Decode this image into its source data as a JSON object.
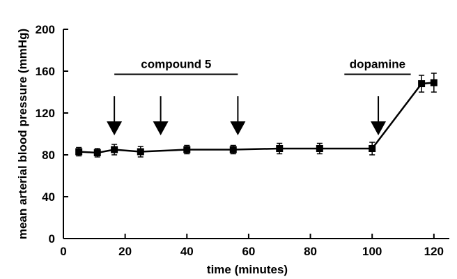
{
  "chart_data": {
    "type": "line",
    "xlabel": "time (minutes)",
    "ylabel": "mean arterial blood pressure (mmHg)",
    "xlim": [
      0,
      125
    ],
    "ylim": [
      0,
      200
    ],
    "x_ticks": [
      0,
      20,
      40,
      60,
      80,
      100,
      120
    ],
    "y_ticks": [
      0,
      40,
      80,
      120,
      160,
      200
    ],
    "x_tick_labels": [
      "0",
      "20",
      "40",
      "60",
      "80",
      "100",
      "120"
    ],
    "y_tick_labels": [
      "0",
      "40",
      "80",
      "120",
      "160",
      "200"
    ],
    "grid": false,
    "series": [
      {
        "marker": "square",
        "color": "#000000",
        "points": [
          {
            "x": 5,
            "y": 83,
            "err": 4
          },
          {
            "x": 11,
            "y": 82,
            "err": 4
          },
          {
            "x": 16.5,
            "y": 85,
            "err": 5
          },
          {
            "x": 25,
            "y": 83,
            "err": 5
          },
          {
            "x": 40,
            "y": 85,
            "err": 4
          },
          {
            "x": 55,
            "y": 85,
            "err": 4
          },
          {
            "x": 70,
            "y": 86,
            "err": 5
          },
          {
            "x": 83,
            "y": 86,
            "err": 5
          },
          {
            "x": 100,
            "y": 86,
            "err": 6
          },
          {
            "x": 116,
            "y": 148,
            "err": 8
          },
          {
            "x": 120,
            "y": 149,
            "err": 9
          }
        ]
      }
    ],
    "annotations": [
      {
        "label": "compound 5",
        "bar_range": [
          16.5,
          56.5
        ],
        "bar_y": 157,
        "arrows_at": [
          16.5,
          31.5,
          56.5
        ]
      },
      {
        "label": "dopamine",
        "bar_range": [
          91,
          112.5
        ],
        "bar_y": 157,
        "arrows_at": [
          102
        ]
      }
    ]
  }
}
